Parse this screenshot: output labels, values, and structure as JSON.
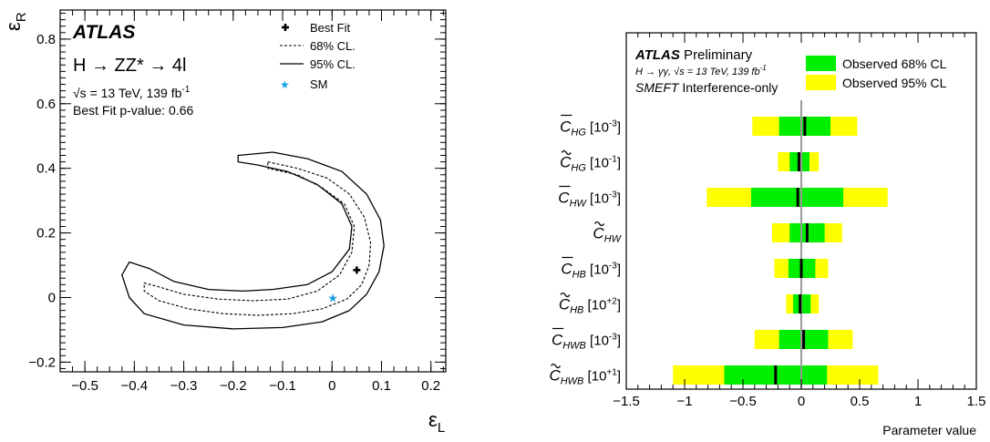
{
  "left_panel": {
    "brand": "ATLAS",
    "process": "H → ZZ* → 4l",
    "energy_sqrt": "√s",
    "energy_rest": " = 13 TeV, 139 fb",
    "energy_exp": "-1",
    "pvalue": "Best Fit p-value: 0.66",
    "legend": [
      "Best Fit",
      "68% CL.",
      "95% CL.",
      "SM"
    ],
    "xlabel_main": "ε",
    "xlabel_sub": "L",
    "ylabel_main": "ε",
    "ylabel_sub": "R",
    "sm_color": "#1aa0e8"
  },
  "right_panel": {
    "brand": "ATLAS",
    "brand_suffix": " Preliminary",
    "subtitle": "H → γγ, √s = 13 TeV, 139 fb",
    "subtitle_exp": "-1",
    "smeft": "SMEFT",
    "smeft_suffix": " Interference-only",
    "legend_68": "Observed 68% CL",
    "legend_95": "Observed 95% CL",
    "xlabel": "Parameter value",
    "color_68": "#00ee00",
    "color_95": "#ffff00"
  },
  "chart_data": [
    {
      "type": "scatter",
      "description_kind": "2D likelihood contour",
      "xlim": [
        -0.55,
        0.23
      ],
      "ylim": [
        -0.23,
        0.89
      ],
      "xticks": [
        "−0.5",
        "−0.4",
        "−0.3",
        "−0.2",
        "−0.1",
        "0",
        "0.1",
        "0.2"
      ],
      "xtick_values": [
        -0.5,
        -0.4,
        -0.3,
        -0.2,
        -0.1,
        0,
        0.1,
        0.2
      ],
      "yticks": [
        "−0.2",
        "0",
        "0.2",
        "0.4",
        "0.6",
        "0.8"
      ],
      "ytick_values": [
        -0.2,
        0,
        0.2,
        0.4,
        0.6,
        0.8
      ],
      "best_fit": {
        "x": 0.05,
        "y": 0.085
      },
      "sm": {
        "x": 0.0,
        "y": 0.0
      },
      "contour_95": [
        [
          -0.19,
          0.44
        ],
        [
          -0.12,
          0.45
        ],
        [
          -0.05,
          0.43
        ],
        [
          0.02,
          0.39
        ],
        [
          0.07,
          0.32
        ],
        [
          0.098,
          0.24
        ],
        [
          0.105,
          0.16
        ],
        [
          0.095,
          0.08
        ],
        [
          0.07,
          0.01
        ],
        [
          0.035,
          -0.04
        ],
        [
          -0.02,
          -0.075
        ],
        [
          -0.1,
          -0.093
        ],
        [
          -0.2,
          -0.097
        ],
        [
          -0.3,
          -0.085
        ],
        [
          -0.38,
          -0.05
        ],
        [
          -0.41,
          0.0
        ],
        [
          -0.425,
          0.07
        ],
        [
          -0.41,
          0.11
        ],
        [
          -0.37,
          0.09
        ],
        [
          -0.32,
          0.05
        ],
        [
          -0.25,
          0.025
        ],
        [
          -0.18,
          0.02
        ],
        [
          -0.12,
          0.025
        ],
        [
          -0.05,
          0.04
        ],
        [
          0.0,
          0.08
        ],
        [
          0.035,
          0.15
        ],
        [
          0.04,
          0.22
        ],
        [
          0.02,
          0.29
        ],
        [
          -0.03,
          0.35
        ],
        [
          -0.09,
          0.39
        ],
        [
          -0.15,
          0.41
        ],
        [
          -0.19,
          0.42
        ]
      ],
      "contour_68": [
        [
          -0.13,
          0.42
        ],
        [
          -0.07,
          0.4
        ],
        [
          -0.01,
          0.37
        ],
        [
          0.035,
          0.32
        ],
        [
          0.065,
          0.25
        ],
        [
          0.078,
          0.17
        ],
        [
          0.075,
          0.1
        ],
        [
          0.06,
          0.04
        ],
        [
          0.03,
          -0.005
        ],
        [
          -0.02,
          -0.035
        ],
        [
          -0.08,
          -0.05
        ],
        [
          -0.15,
          -0.055
        ],
        [
          -0.22,
          -0.05
        ],
        [
          -0.29,
          -0.035
        ],
        [
          -0.35,
          -0.01
        ],
        [
          -0.38,
          0.02
        ],
        [
          -0.38,
          0.045
        ],
        [
          -0.355,
          0.035
        ],
        [
          -0.3,
          0.01
        ],
        [
          -0.23,
          -0.005
        ],
        [
          -0.16,
          -0.01
        ],
        [
          -0.09,
          -0.005
        ],
        [
          -0.03,
          0.02
        ],
        [
          0.015,
          0.07
        ],
        [
          0.04,
          0.14
        ],
        [
          0.045,
          0.22
        ],
        [
          0.025,
          0.29
        ],
        [
          -0.02,
          0.34
        ],
        [
          -0.07,
          0.38
        ],
        [
          -0.13,
          0.4
        ]
      ]
    },
    {
      "type": "bar",
      "orientation": "horizontal",
      "xlim": [
        -1.5,
        1.5
      ],
      "xticks": [
        "−1.5",
        "−1",
        "−0.5",
        "0",
        "0.5",
        "1",
        "1.5"
      ],
      "xtick_values": [
        -1.5,
        -1,
        -0.5,
        0,
        0.5,
        1,
        1.5
      ],
      "xlabel": "Parameter value",
      "series": [
        {
          "base": "C",
          "mark": "bar",
          "sub": "HG",
          "scale": "[10",
          "exp": "-3",
          "best": 0.03,
          "cl68": [
            -0.19,
            0.25
          ],
          "cl95": [
            -0.42,
            0.48
          ]
        },
        {
          "base": "C",
          "mark": "tilde",
          "sub": "HG",
          "scale": "[10",
          "exp": "-1",
          "best": -0.02,
          "cl68": [
            -0.1,
            0.07
          ],
          "cl95": [
            -0.2,
            0.15
          ]
        },
        {
          "base": "C",
          "mark": "bar",
          "sub": "HW",
          "scale": "[10",
          "exp": "-3",
          "best": -0.03,
          "cl68": [
            -0.43,
            0.36
          ],
          "cl95": [
            -0.81,
            0.74
          ]
        },
        {
          "base": "C",
          "mark": "tilde",
          "sub": "HW",
          "scale": "",
          "exp": "",
          "best": 0.05,
          "cl68": [
            -0.1,
            0.2
          ],
          "cl95": [
            -0.25,
            0.35
          ]
        },
        {
          "base": "C",
          "mark": "bar",
          "sub": "HB",
          "scale": "[10",
          "exp": "-3",
          "best": 0.0,
          "cl68": [
            -0.11,
            0.12
          ],
          "cl95": [
            -0.23,
            0.23
          ]
        },
        {
          "base": "C",
          "mark": "tilde",
          "sub": "HB",
          "scale": "[10",
          "exp": "+2",
          "best": -0.01,
          "cl68": [
            -0.07,
            0.08
          ],
          "cl95": [
            -0.13,
            0.15
          ]
        },
        {
          "base": "C",
          "mark": "bar",
          "sub": "HWB",
          "scale": "[10",
          "exp": "-3",
          "best": 0.02,
          "cl68": [
            -0.19,
            0.23
          ],
          "cl95": [
            -0.4,
            0.44
          ]
        },
        {
          "base": "C",
          "mark": "tilde",
          "sub": "HWB",
          "scale": "[10",
          "exp": "+1",
          "best": -0.22,
          "cl68": [
            -0.66,
            0.22
          ],
          "cl95": [
            -1.1,
            0.66
          ]
        }
      ]
    }
  ]
}
